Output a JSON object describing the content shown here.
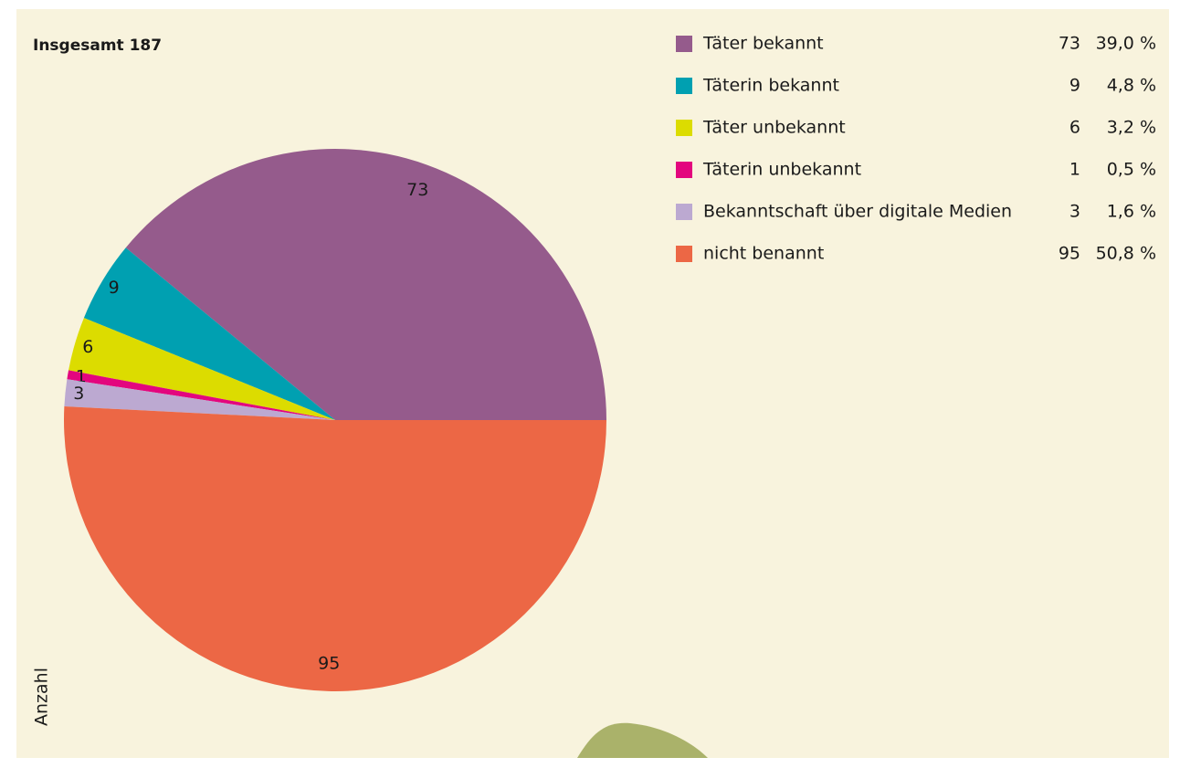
{
  "chart_data": {
    "type": "pie",
    "title": "Insgesamt 187",
    "axis_label": "Anzahl",
    "categories": [
      "Täter bekannt",
      "Täterin bekannt",
      "Täter unbekannt",
      "Täterin unbekannt",
      "Bekanntschaft über digitale Medien",
      "nicht benannt"
    ],
    "values": [
      73,
      9,
      6,
      1,
      3,
      95
    ],
    "colors": [
      "#955b8c",
      "#00a0b1",
      "#dcdc00",
      "#e3067e",
      "#bca9d1",
      "#ec6745"
    ],
    "shares": [
      39.0,
      4.8,
      3.2,
      0.5,
      1.6,
      50.8
    ],
    "share_labels": [
      "39,0 %",
      "4,8 %",
      "3,2 %",
      "0,5 %",
      "1,6 %",
      "50,8 %"
    ]
  }
}
